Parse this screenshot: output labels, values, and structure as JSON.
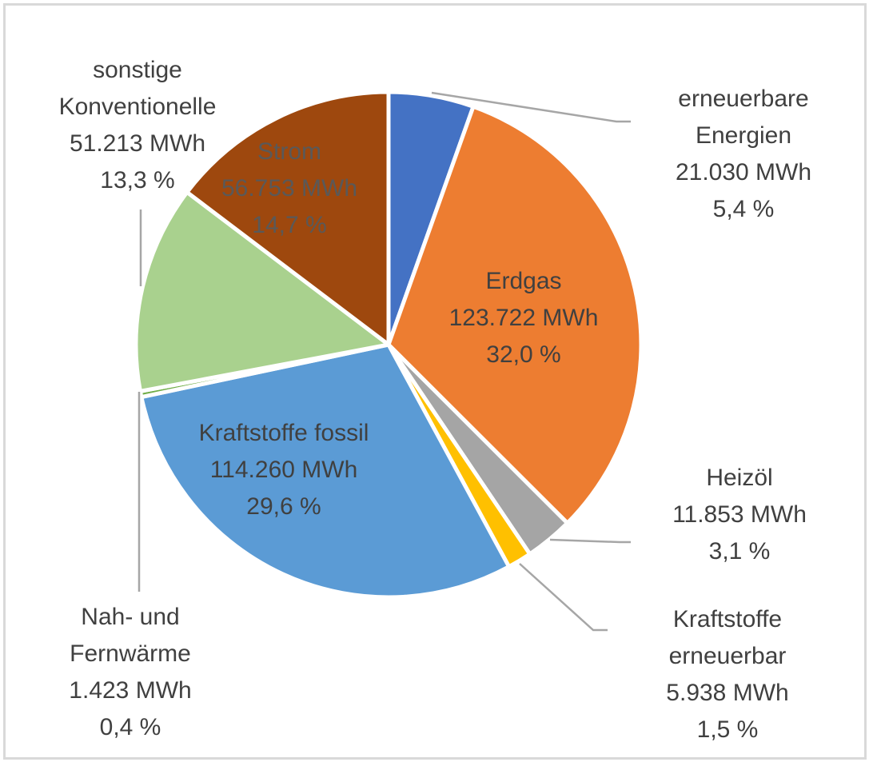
{
  "chart_data": {
    "type": "pie",
    "unit": "MWh",
    "slices": [
      {
        "name": "erneuerbare Energien",
        "label_lines": [
          "erneuerbare",
          "Energien"
        ],
        "value": 21030,
        "value_text": "21.030 MWh",
        "percent_text": "5,4 %",
        "color": "#4472C4"
      },
      {
        "name": "Erdgas",
        "label_lines": [
          "Erdgas"
        ],
        "value": 123722,
        "value_text": "123.722 MWh",
        "percent_text": "32,0 %",
        "color": "#ED7D31"
      },
      {
        "name": "Heizöl",
        "label_lines": [
          "Heizöl"
        ],
        "value": 11853,
        "value_text": "11.853 MWh",
        "percent_text": "3,1 %",
        "color": "#A5A5A5"
      },
      {
        "name": "Kraftstoffe erneuerbar",
        "label_lines": [
          "Kraftstoffe",
          "erneuerbar"
        ],
        "value": 5938,
        "value_text": "5.938 MWh",
        "percent_text": "1,5 %",
        "color": "#FFC000"
      },
      {
        "name": "Kraftstoffe fossil",
        "label_lines": [
          "Kraftstoffe fossil"
        ],
        "value": 114260,
        "value_text": "114.260 MWh",
        "percent_text": "29,6 %",
        "color": "#5B9BD5"
      },
      {
        "name": "Nah- und Fernwärme",
        "label_lines": [
          "Nah- und",
          "Fernwärme"
        ],
        "value": 1423,
        "value_text": "1.423 MWh",
        "percent_text": "0,4 %",
        "color": "#70AD47"
      },
      {
        "name": "sonstige Konventionelle",
        "label_lines": [
          "sonstige",
          "Konventionelle"
        ],
        "value": 51213,
        "value_text": "51.213 MWh",
        "percent_text": "13,3 %",
        "color": "#A9D18E"
      },
      {
        "name": "Strom",
        "label_lines": [
          "Strom"
        ],
        "value": 56753,
        "value_text": "56.753 MWh",
        "percent_text": "14,7 %",
        "color": "#9E480E"
      }
    ]
  }
}
